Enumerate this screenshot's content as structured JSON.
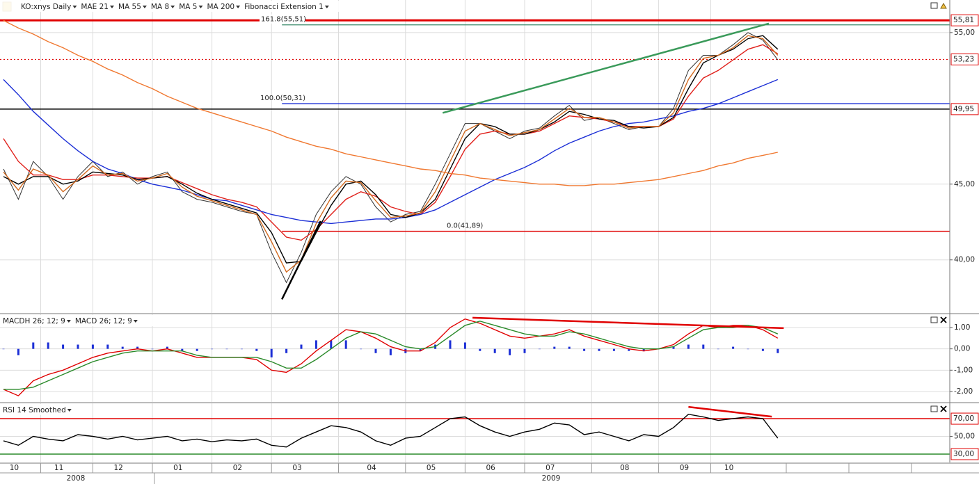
{
  "x_axis": {
    "categories": [
      null,
      "10",
      null,
      null,
      "11",
      null,
      null,
      null,
      "12",
      null,
      null,
      null,
      "01",
      null,
      null,
      null,
      "02",
      null,
      null,
      null,
      "03",
      null,
      null,
      null,
      null,
      "04",
      null,
      null,
      null,
      "05",
      null,
      null,
      null,
      "06",
      null,
      null,
      null,
      "07",
      null,
      null,
      null,
      null,
      "08",
      null,
      null,
      null,
      "09",
      null,
      null,
      "10",
      null,
      null,
      null
    ],
    "years": [
      "2008",
      "2009"
    ]
  },
  "chart_data": [
    {
      "type": "line",
      "ylim": [
        36.5,
        57.15
      ],
      "yticks": [
        {
          "value": 55,
          "label": "55,00"
        },
        {
          "value": 45,
          "label": "45,00"
        },
        {
          "value": 40,
          "label": "40,00"
        }
      ],
      "series": [
        {
          "name": "KO:xnys Daily",
          "color": "#333333",
          "values": [
            46.0,
            44.0,
            46.5,
            45.5,
            44.0,
            45.5,
            46.5,
            45.5,
            45.8,
            45.0,
            45.5,
            45.8,
            44.5,
            44.0,
            43.8,
            43.5,
            43.2,
            43.0,
            40.5,
            38.5,
            40.5,
            43.0,
            44.5,
            45.5,
            45.0,
            43.5,
            42.5,
            43.0,
            43.2,
            45.0,
            47.0,
            49.0,
            49.0,
            48.5,
            48.0,
            48.5,
            48.7,
            49.5,
            50.2,
            49.2,
            49.4,
            49.0,
            48.6,
            48.8,
            48.8,
            50.0,
            52.5,
            53.5,
            53.5,
            54.2,
            55.0,
            54.5,
            53.2
          ]
        },
        {
          "name": "MAE 21",
          "color": "#e0201b",
          "values": [
            48.0,
            46.5,
            45.6,
            45.6,
            45.3,
            45.3,
            45.6,
            45.6,
            45.5,
            45.4,
            45.4,
            45.5,
            45.1,
            44.7,
            44.3,
            44.0,
            43.8,
            43.5,
            42.5,
            41.5,
            41.3,
            42.0,
            43.0,
            44.0,
            44.5,
            44.2,
            43.5,
            43.2,
            43.0,
            43.8,
            45.5,
            47.3,
            48.3,
            48.5,
            48.3,
            48.3,
            48.5,
            49.0,
            49.5,
            49.4,
            49.3,
            49.1,
            48.8,
            48.8,
            48.8,
            49.3,
            50.8,
            52.0,
            52.5,
            53.2,
            53.9,
            54.2,
            53.6
          ]
        },
        {
          "name": "MA 55",
          "color": "#1c2fd6",
          "values": [
            51.9,
            50.9,
            49.8,
            48.9,
            48.0,
            47.2,
            46.5,
            46.0,
            45.7,
            45.3,
            45.0,
            44.8,
            44.6,
            44.3,
            44.0,
            43.9,
            43.6,
            43.3,
            43.0,
            42.8,
            42.6,
            42.5,
            42.4,
            42.5,
            42.6,
            42.7,
            42.7,
            42.8,
            43.0,
            43.3,
            43.8,
            44.3,
            44.8,
            45.3,
            45.7,
            46.1,
            46.6,
            47.2,
            47.7,
            48.1,
            48.5,
            48.8,
            49.0,
            49.1,
            49.3,
            49.5,
            49.8,
            50.0,
            50.3,
            50.7,
            51.1,
            51.5,
            51.9
          ]
        },
        {
          "name": "MA 8",
          "color": "#000000",
          "values": [
            45.5,
            45.0,
            45.5,
            45.5,
            45.0,
            45.2,
            45.8,
            45.7,
            45.6,
            45.3,
            45.4,
            45.5,
            45.0,
            44.4,
            44.0,
            43.7,
            43.4,
            43.1,
            41.8,
            39.8,
            39.9,
            41.8,
            43.6,
            45.0,
            45.2,
            44.3,
            43.0,
            42.8,
            43.1,
            44.0,
            46.0,
            48.0,
            49.0,
            48.8,
            48.3,
            48.3,
            48.6,
            49.1,
            49.8,
            49.6,
            49.3,
            49.2,
            48.8,
            48.7,
            48.8,
            49.4,
            51.3,
            53.0,
            53.5,
            53.9,
            54.6,
            54.8,
            53.9
          ]
        },
        {
          "name": "MA 5",
          "color": "#d2691e",
          "values": [
            45.8,
            44.6,
            46.0,
            45.6,
            44.5,
            45.3,
            46.2,
            45.6,
            45.7,
            45.2,
            45.4,
            45.7,
            44.8,
            44.2,
            43.9,
            43.6,
            43.3,
            43.0,
            41.2,
            39.2,
            40.0,
            42.4,
            44.1,
            45.2,
            45.1,
            43.9,
            42.8,
            42.9,
            43.1,
            44.5,
            46.5,
            48.5,
            49.0,
            48.6,
            48.2,
            48.4,
            48.6,
            49.3,
            50.0,
            49.4,
            49.4,
            49.1,
            48.7,
            48.8,
            48.8,
            49.7,
            51.9,
            53.3,
            53.5,
            54.0,
            54.8,
            54.6,
            53.5
          ]
        },
        {
          "name": "MA 200",
          "color": "#f07830",
          "values": [
            55.8,
            55.3,
            54.9,
            54.4,
            54.0,
            53.5,
            53.1,
            52.6,
            52.2,
            51.7,
            51.3,
            50.8,
            50.4,
            50.0,
            49.7,
            49.4,
            49.1,
            48.8,
            48.5,
            48.1,
            47.8,
            47.5,
            47.3,
            47.0,
            46.8,
            46.6,
            46.4,
            46.2,
            46.0,
            45.9,
            45.7,
            45.6,
            45.4,
            45.3,
            45.2,
            45.1,
            45.0,
            45.0,
            44.9,
            44.9,
            45.0,
            45.0,
            45.1,
            45.2,
            45.3,
            45.5,
            45.7,
            45.9,
            46.2,
            46.4,
            46.7,
            46.9,
            47.1
          ]
        }
      ],
      "hlines": [
        {
          "value": 55.81,
          "color": "#e00000",
          "tag": "55,81",
          "width": 3
        },
        {
          "value": 53.23,
          "color": "#e00000",
          "tag": "53,23",
          "dash": true
        },
        {
          "value": 49.95,
          "color": "#000000",
          "tag": "49,95",
          "width": 1.5
        }
      ],
      "fibonacci": {
        "name": "Fibonacci Extension 1",
        "x_start": 18.7,
        "levels": [
          {
            "value": 55.51,
            "label": "161.8(55,51)",
            "color": "#3a8a6a"
          },
          {
            "value": 50.31,
            "label": "100.0(50,31)",
            "color": "#1c2fd6"
          },
          {
            "value": 41.89,
            "label": "0.0(41,89)",
            "color": "#e00000"
          }
        ]
      },
      "trendlines": [
        {
          "color": "#3a9a5a",
          "x": [
            29.5,
            51.4
          ],
          "values": [
            49.7,
            55.6
          ]
        },
        {
          "color": "#000000",
          "x": [
            18.7,
            21.3
          ],
          "values": [
            37.4,
            42.56
          ]
        }
      ]
    },
    {
      "type": "line",
      "ylim": [
        -2.49,
        1.62
      ],
      "yticks": [
        {
          "value": 1,
          "label": "1,00"
        },
        {
          "value": 0,
          "label": "0,00"
        },
        {
          "value": -1,
          "label": "-1,00"
        },
        {
          "value": -2,
          "label": "-2,00"
        }
      ],
      "series": [
        {
          "name": "MACDH 26; 12; 9",
          "type": "bar",
          "color": "#1c2fd6",
          "values": [
            0,
            -0.3,
            0.3,
            0.3,
            0.2,
            0.2,
            0.2,
            0.2,
            0.1,
            0.1,
            0,
            0.1,
            -0.1,
            -0.1,
            0,
            0,
            0,
            -0.1,
            -0.4,
            -0.2,
            0.2,
            0.4,
            0.4,
            0.4,
            0,
            -0.2,
            -0.3,
            -0.2,
            -0.1,
            0.2,
            0.4,
            0.3,
            -0.1,
            -0.2,
            -0.3,
            -0.2,
            0,
            0.1,
            0.1,
            -0.1,
            -0.1,
            -0.1,
            -0.1,
            -0.1,
            0,
            0.1,
            0.2,
            0.2,
            0,
            0.1,
            0,
            -0.1,
            -0.2
          ]
        },
        {
          "color": "#e00000",
          "values": [
            -1.9,
            -2.2,
            -1.5,
            -1.2,
            -1.0,
            -0.7,
            -0.4,
            -0.2,
            -0.1,
            0.0,
            -0.1,
            0.0,
            -0.2,
            -0.4,
            -0.4,
            -0.4,
            -0.4,
            -0.5,
            -1.0,
            -1.1,
            -0.7,
            -0.1,
            0.4,
            0.9,
            0.8,
            0.5,
            0.1,
            -0.1,
            -0.1,
            0.3,
            1.0,
            1.4,
            1.2,
            0.9,
            0.6,
            0.5,
            0.6,
            0.7,
            0.9,
            0.6,
            0.4,
            0.2,
            0.0,
            -0.1,
            0.0,
            0.2,
            0.7,
            1.1,
            1.0,
            1.1,
            1.1,
            0.9,
            0.5
          ]
        },
        {
          "name": "MACD 26; 12; 9",
          "color": "#2a8a2a",
          "values": [
            -1.9,
            -1.9,
            -1.8,
            -1.5,
            -1.2,
            -0.9,
            -0.6,
            -0.4,
            -0.2,
            -0.1,
            -0.1,
            -0.1,
            -0.1,
            -0.3,
            -0.4,
            -0.4,
            -0.4,
            -0.4,
            -0.6,
            -0.9,
            -0.9,
            -0.5,
            0.0,
            0.5,
            0.8,
            0.7,
            0.4,
            0.1,
            0.0,
            0.1,
            0.6,
            1.1,
            1.3,
            1.1,
            0.9,
            0.7,
            0.6,
            0.6,
            0.8,
            0.7,
            0.5,
            0.3,
            0.1,
            0.0,
            0.0,
            0.1,
            0.5,
            0.9,
            1.0,
            1.0,
            1.1,
            1.0,
            0.7
          ]
        }
      ],
      "trendlines": [
        {
          "color": "#e00000",
          "x": [
            31.5,
            52.4
          ],
          "values": [
            1.46,
            0.97
          ]
        }
      ]
    },
    {
      "type": "line",
      "ylim": [
        20.6,
        87.3
      ],
      "yticks": [
        {
          "value": 50,
          "label": "50,00"
        }
      ],
      "series": [
        {
          "name": "RSI 14 Smoothed",
          "color": "#000000",
          "values": [
            45,
            40,
            50,
            47,
            45,
            52,
            50,
            47,
            50,
            46,
            48,
            50,
            45,
            47,
            44,
            46,
            45,
            47,
            40,
            38,
            48,
            55,
            62,
            60,
            55,
            45,
            40,
            48,
            50,
            60,
            70,
            72,
            62,
            55,
            50,
            55,
            58,
            65,
            63,
            52,
            55,
            50,
            45,
            52,
            50,
            60,
            75,
            72,
            68,
            70,
            72,
            70,
            48
          ]
        }
      ],
      "hlines": [
        {
          "value": 70,
          "color": "#e00000",
          "tag": "70,00",
          "width": 1.5
        },
        {
          "value": 30,
          "color": "#2a8a2a",
          "tag": "30,00",
          "width": 1.5
        }
      ],
      "trendlines": [
        {
          "color": "#e00000",
          "x": [
            46.0,
            51.6
          ],
          "values": [
            83.3,
            72.3
          ]
        }
      ]
    }
  ]
}
